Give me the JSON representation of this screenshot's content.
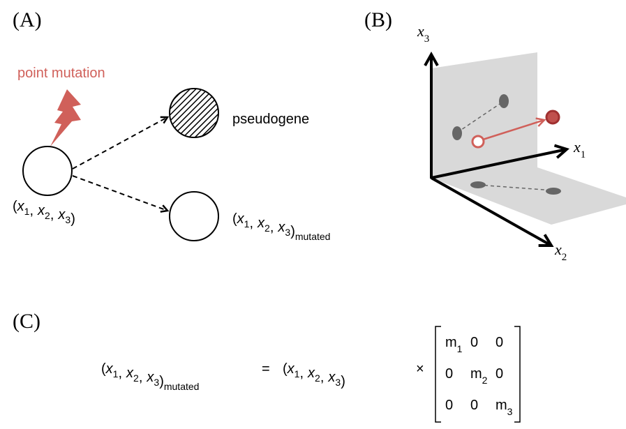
{
  "panels": {
    "a": "(A)",
    "b": "(B)",
    "c": "(C)"
  },
  "panel_a": {
    "mutation_label": "point mutation",
    "pseudogene_label": "pseudogene"
  },
  "tuple": {
    "open": "(",
    "sep": ",",
    "close": ")",
    "var": "x",
    "subs": [
      "1",
      "2",
      "3"
    ],
    "mutated": "mutated"
  },
  "panel_b": {
    "axes": [
      {
        "var": "x",
        "sub": "3"
      },
      {
        "var": "x",
        "sub": "1"
      },
      {
        "var": "x",
        "sub": "2"
      }
    ]
  },
  "equation": {
    "equals": "=",
    "times": "×",
    "matrix": [
      [
        {
          "main": "m",
          "sub": "1"
        },
        {
          "main": "0"
        },
        {
          "main": "0"
        }
      ],
      [
        {
          "main": "0"
        },
        {
          "main": "m",
          "sub": "2"
        },
        {
          "main": "0"
        }
      ],
      [
        {
          "main": "0"
        },
        {
          "main": "0"
        },
        {
          "main": "m",
          "sub": "3"
        }
      ]
    ]
  }
}
